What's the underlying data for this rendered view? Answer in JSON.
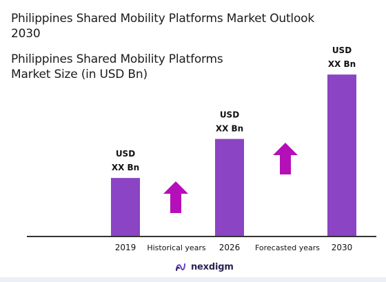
{
  "title": "Philippines Shared Mobility Platforms Market Outlook 2030",
  "subtitle": "Philippines Shared Mobility Platforms Market Size (in USD Bn)",
  "chart_data": {
    "type": "bar",
    "categories": [
      "2019",
      "2026",
      "2030"
    ],
    "values": [
      3,
      5,
      8.3
    ],
    "value_labels": [
      [
        "USD",
        "XX Bn"
      ],
      [
        "USD",
        "XX Bn"
      ],
      [
        "USD",
        "XX Bn"
      ]
    ],
    "between_labels": [
      "Historical years",
      "Forecasted years"
    ],
    "ylim": [
      0,
      10
    ],
    "grid": false,
    "legend": "none",
    "bar_color": "#8b44c4",
    "arrow_color": "#b40fb8",
    "axis_color": "#333333"
  },
  "logo": {
    "text": "nexdigm",
    "color": "#2a2550",
    "accent": "#6a3fc7"
  }
}
